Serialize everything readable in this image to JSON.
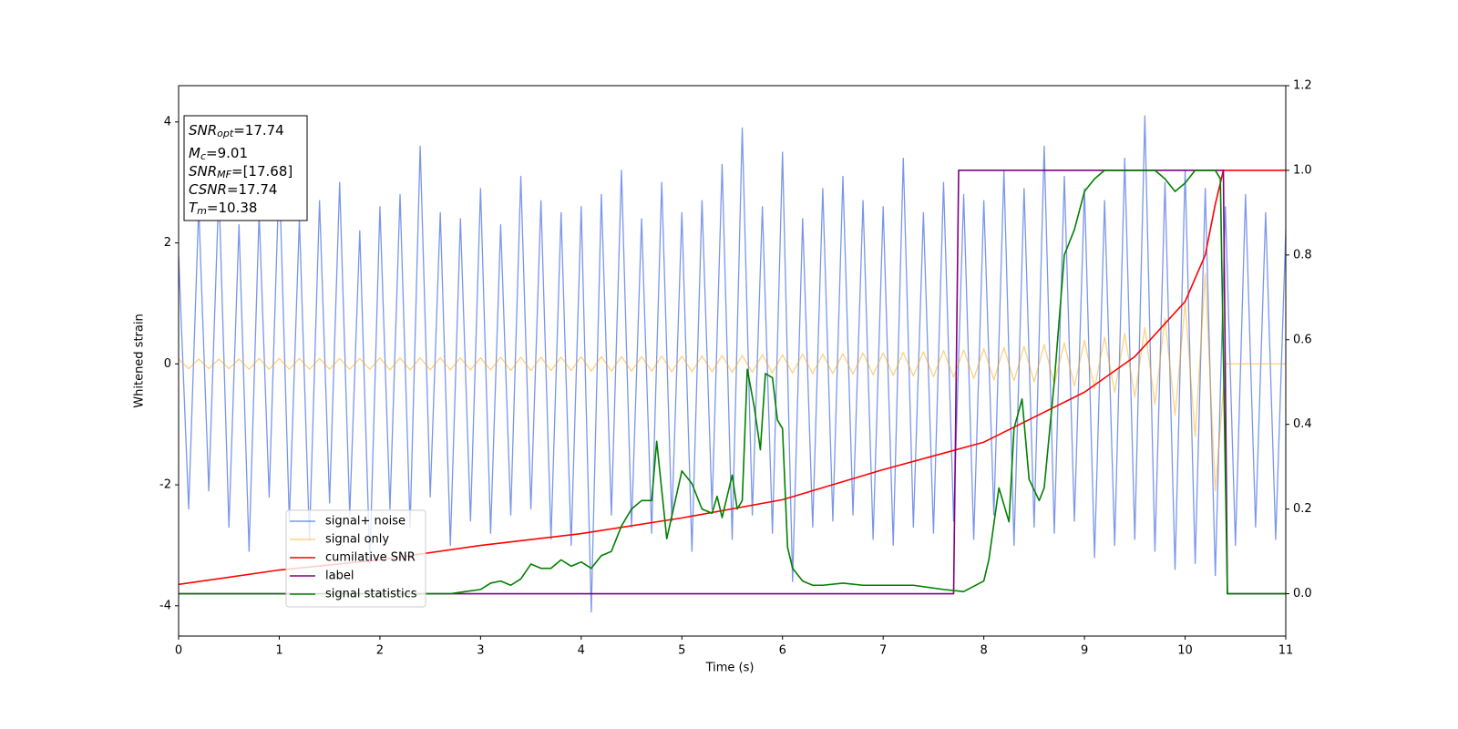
{
  "chart_data": {
    "type": "line",
    "xlabel": "Time (s)",
    "ylabel": "Whitened strain",
    "xlim": [
      0,
      11
    ],
    "xticks": [
      0,
      1,
      2,
      3,
      4,
      5,
      6,
      7,
      8,
      9,
      10,
      11
    ],
    "ylim": [
      -4.5,
      4.6
    ],
    "yticks": [
      -4,
      -2,
      0,
      2,
      4
    ],
    "y2lim": [
      -0.1,
      1.2
    ],
    "y2ticks": [
      {
        "value": 0,
        "label": "0.0"
      },
      0.2,
      0.4,
      0.6,
      0.8,
      {
        "value": 1,
        "label": "1.0"
      },
      1.2
    ],
    "legend": "lower left",
    "annotations": [
      {
        "main": "SNR",
        "sub": "opt",
        "rest": "=17.74"
      },
      {
        "main": "M",
        "sub": "c",
        "rest": "=9.01"
      },
      {
        "main": "SNR",
        "sub": "MF",
        "rest": "=[17.68]"
      },
      {
        "main": "CSNR",
        "rest": "=17.74"
      },
      {
        "main": "T",
        "sub": "m",
        "rest": "=10.38"
      }
    ],
    "series": [
      {
        "name": "signal+ noise",
        "color": "#4169e1",
        "alpha": 0.7,
        "x": [
          0,
          0.1,
          0.2,
          0.3,
          0.4,
          0.5,
          0.6,
          0.7,
          0.8,
          0.9,
          1,
          1.1,
          1.2,
          1.3,
          1.4,
          1.5,
          1.6,
          1.7,
          1.8,
          1.9,
          2,
          2.1,
          2.2,
          2.3,
          2.4,
          2.5,
          2.6,
          2.7,
          2.8,
          2.9,
          3,
          3.1,
          3.2,
          3.3,
          3.4,
          3.5,
          3.6,
          3.7,
          3.8,
          3.9,
          4,
          4.1,
          4.2,
          4.3,
          4.4,
          4.5,
          4.6,
          4.7,
          4.8,
          4.9,
          5,
          5.1,
          5.2,
          5.3,
          5.4,
          5.5,
          5.6,
          5.7,
          5.8,
          5.9,
          6,
          6.1,
          6.2,
          6.3,
          6.4,
          6.5,
          6.6,
          6.7,
          6.8,
          6.9,
          7,
          7.1,
          7.2,
          7.3,
          7.4,
          7.5,
          7.6,
          7.7,
          7.8,
          7.9,
          8,
          8.1,
          8.2,
          8.3,
          8.4,
          8.5,
          8.6,
          8.7,
          8.8,
          8.9,
          9,
          9.1,
          9.2,
          9.3,
          9.4,
          9.5,
          9.6,
          9.7,
          9.8,
          9.9,
          10,
          10.1,
          10.2,
          10.3,
          10.4,
          10.5,
          10.6,
          10.7,
          10.8,
          10.9,
          11
        ],
        "values": [
          1.8,
          -2.4,
          2.6,
          -2.1,
          2.9,
          -2.7,
          2.3,
          -3.1,
          2.5,
          -2.2,
          3.2,
          -2.6,
          2.4,
          -2.9,
          2.7,
          -2.3,
          3.0,
          -2.5,
          2.2,
          -3.3,
          2.6,
          -2.4,
          2.8,
          -2.7,
          3.6,
          -2.2,
          2.5,
          -3.0,
          2.4,
          -2.6,
          2.9,
          -2.8,
          2.3,
          -2.5,
          3.1,
          -2.4,
          2.7,
          -2.9,
          2.5,
          -3.0,
          2.6,
          -4.1,
          2.8,
          -2.5,
          3.2,
          -2.7,
          2.4,
          -2.8,
          3.0,
          -2.6,
          2.5,
          -3.1,
          2.7,
          -2.4,
          3.3,
          -2.9,
          3.9,
          -2.5,
          2.6,
          -2.8,
          3.5,
          -3.6,
          2.4,
          -2.7,
          2.9,
          -2.6,
          3.1,
          -2.5,
          2.7,
          -2.9,
          2.6,
          -3.0,
          3.4,
          -2.7,
          2.5,
          -2.8,
          3.0,
          -2.6,
          2.8,
          -2.9,
          2.7,
          -2.5,
          3.2,
          -3.0,
          2.9,
          -2.7,
          3.6,
          -2.8,
          3.1,
          -2.6,
          2.9,
          -3.2,
          2.7,
          -3.0,
          3.4,
          -2.9,
          4.1,
          -3.1,
          3.0,
          -3.4,
          3.2,
          -3.3,
          2.9,
          -3.5,
          2.6,
          -3.0,
          2.8,
          -2.7,
          2.5,
          -2.9,
          2.2
        ]
      },
      {
        "name": "signal only",
        "color": "#ffa500",
        "alpha": 0.5,
        "x": [
          0,
          0.1,
          0.2,
          0.3,
          0.4,
          0.5,
          0.6,
          0.7,
          0.8,
          0.9,
          1,
          1.1,
          1.2,
          1.3,
          1.4,
          1.5,
          1.6,
          1.7,
          1.8,
          1.9,
          2,
          2.1,
          2.2,
          2.3,
          2.4,
          2.5,
          2.6,
          2.7,
          2.8,
          2.9,
          3,
          3.1,
          3.2,
          3.3,
          3.4,
          3.5,
          3.6,
          3.7,
          3.8,
          3.9,
          4,
          4.1,
          4.2,
          4.3,
          4.4,
          4.5,
          4.6,
          4.7,
          4.8,
          4.9,
          5,
          5.1,
          5.2,
          5.3,
          5.4,
          5.5,
          5.6,
          5.7,
          5.8,
          5.9,
          6,
          6.1,
          6.2,
          6.3,
          6.4,
          6.5,
          6.6,
          6.7,
          6.8,
          6.9,
          7,
          7.1,
          7.2,
          7.3,
          7.4,
          7.5,
          7.6,
          7.7,
          7.8,
          7.9,
          8,
          8.1,
          8.2,
          8.3,
          8.4,
          8.5,
          8.6,
          8.7,
          8.8,
          8.9,
          9,
          9.1,
          9.2,
          9.3,
          9.4,
          9.5,
          9.6,
          9.7,
          9.8,
          9.9,
          10,
          10.1,
          10.2,
          10.3,
          10.4,
          10.5,
          10.6,
          10.7,
          10.8,
          10.9,
          11
        ],
        "values": [
          0.08,
          -0.08,
          0.08,
          -0.08,
          0.08,
          -0.08,
          0.08,
          -0.09,
          0.09,
          -0.09,
          0.09,
          -0.09,
          0.09,
          -0.09,
          0.09,
          -0.09,
          0.09,
          -0.09,
          0.09,
          -0.09,
          0.1,
          -0.1,
          0.1,
          -0.1,
          0.1,
          -0.1,
          0.1,
          -0.1,
          0.1,
          -0.1,
          0.1,
          -0.1,
          0.11,
          -0.11,
          0.11,
          -0.11,
          0.11,
          -0.11,
          0.11,
          -0.11,
          0.12,
          -0.12,
          0.12,
          -0.12,
          0.12,
          -0.12,
          0.12,
          -0.12,
          0.13,
          -0.13,
          0.13,
          -0.13,
          0.13,
          -0.13,
          0.14,
          -0.14,
          0.14,
          -0.14,
          0.15,
          -0.15,
          0.15,
          -0.15,
          0.16,
          -0.16,
          0.16,
          -0.16,
          0.17,
          -0.17,
          0.18,
          -0.18,
          0.18,
          -0.19,
          0.19,
          -0.2,
          0.2,
          -0.21,
          0.22,
          -0.22,
          0.23,
          -0.24,
          0.25,
          -0.26,
          0.27,
          -0.28,
          0.29,
          -0.3,
          0.32,
          -0.33,
          0.35,
          -0.37,
          0.39,
          -0.41,
          0.44,
          -0.47,
          0.5,
          -0.55,
          0.6,
          -0.67,
          0.75,
          -0.85,
          1.0,
          -1.2,
          1.5,
          -2.1,
          0,
          0,
          0,
          0,
          0,
          0,
          0
        ]
      },
      {
        "name": "cumilative SNR",
        "color": "#ff0000",
        "axis": "y2",
        "x": [
          0,
          1,
          2,
          3,
          4,
          5,
          6,
          7,
          8,
          9,
          9.5,
          10,
          10.2,
          10.3,
          10.38,
          11
        ],
        "values": [
          0.022,
          0.056,
          0.08,
          0.114,
          0.142,
          0.179,
          0.222,
          0.293,
          0.358,
          0.476,
          0.56,
          0.69,
          0.8,
          0.92,
          1.0,
          1.0
        ]
      },
      {
        "name": "label",
        "color": "#800080",
        "axis": "y2",
        "x": [
          0,
          7.7,
          7.75,
          10.38,
          10.42,
          11
        ],
        "values": [
          0,
          0,
          1,
          1,
          0,
          0
        ]
      },
      {
        "name": "signal statistics",
        "color": "#008000",
        "axis": "y2",
        "x": [
          0,
          1,
          2,
          2.7,
          3,
          3.1,
          3.2,
          3.3,
          3.4,
          3.5,
          3.6,
          3.7,
          3.8,
          3.9,
          4.0,
          4.1,
          4.2,
          4.3,
          4.4,
          4.5,
          4.6,
          4.7,
          4.75,
          4.85,
          5.0,
          5.1,
          5.2,
          5.3,
          5.35,
          5.4,
          5.5,
          5.55,
          5.6,
          5.65,
          5.72,
          5.78,
          5.83,
          5.9,
          5.95,
          6.0,
          6.05,
          6.1,
          6.2,
          6.3,
          6.4,
          6.6,
          6.8,
          7.0,
          7.3,
          7.6,
          7.8,
          8.0,
          8.05,
          8.15,
          8.25,
          8.3,
          8.38,
          8.45,
          8.55,
          8.6,
          8.7,
          8.8,
          8.9,
          9.0,
          9.1,
          9.2,
          9.5,
          9.7,
          9.8,
          9.9,
          10.0,
          10.1,
          10.3,
          10.35,
          10.42,
          11
        ],
        "values": [
          0,
          0,
          0,
          0,
          0.01,
          0.025,
          0.03,
          0.02,
          0.035,
          0.07,
          0.06,
          0.06,
          0.08,
          0.065,
          0.075,
          0.06,
          0.09,
          0.1,
          0.16,
          0.2,
          0.22,
          0.22,
          0.36,
          0.13,
          0.29,
          0.26,
          0.2,
          0.19,
          0.23,
          0.18,
          0.28,
          0.2,
          0.22,
          0.53,
          0.44,
          0.34,
          0.52,
          0.51,
          0.41,
          0.39,
          0.11,
          0.06,
          0.03,
          0.02,
          0.02,
          0.025,
          0.02,
          0.02,
          0.02,
          0.01,
          0.005,
          0.03,
          0.08,
          0.25,
          0.17,
          0.39,
          0.46,
          0.27,
          0.22,
          0.25,
          0.5,
          0.8,
          0.86,
          0.95,
          0.98,
          1.0,
          1.0,
          1.0,
          0.98,
          0.95,
          0.97,
          1.0,
          1.0,
          0.98,
          0.0,
          0.0
        ]
      }
    ]
  }
}
